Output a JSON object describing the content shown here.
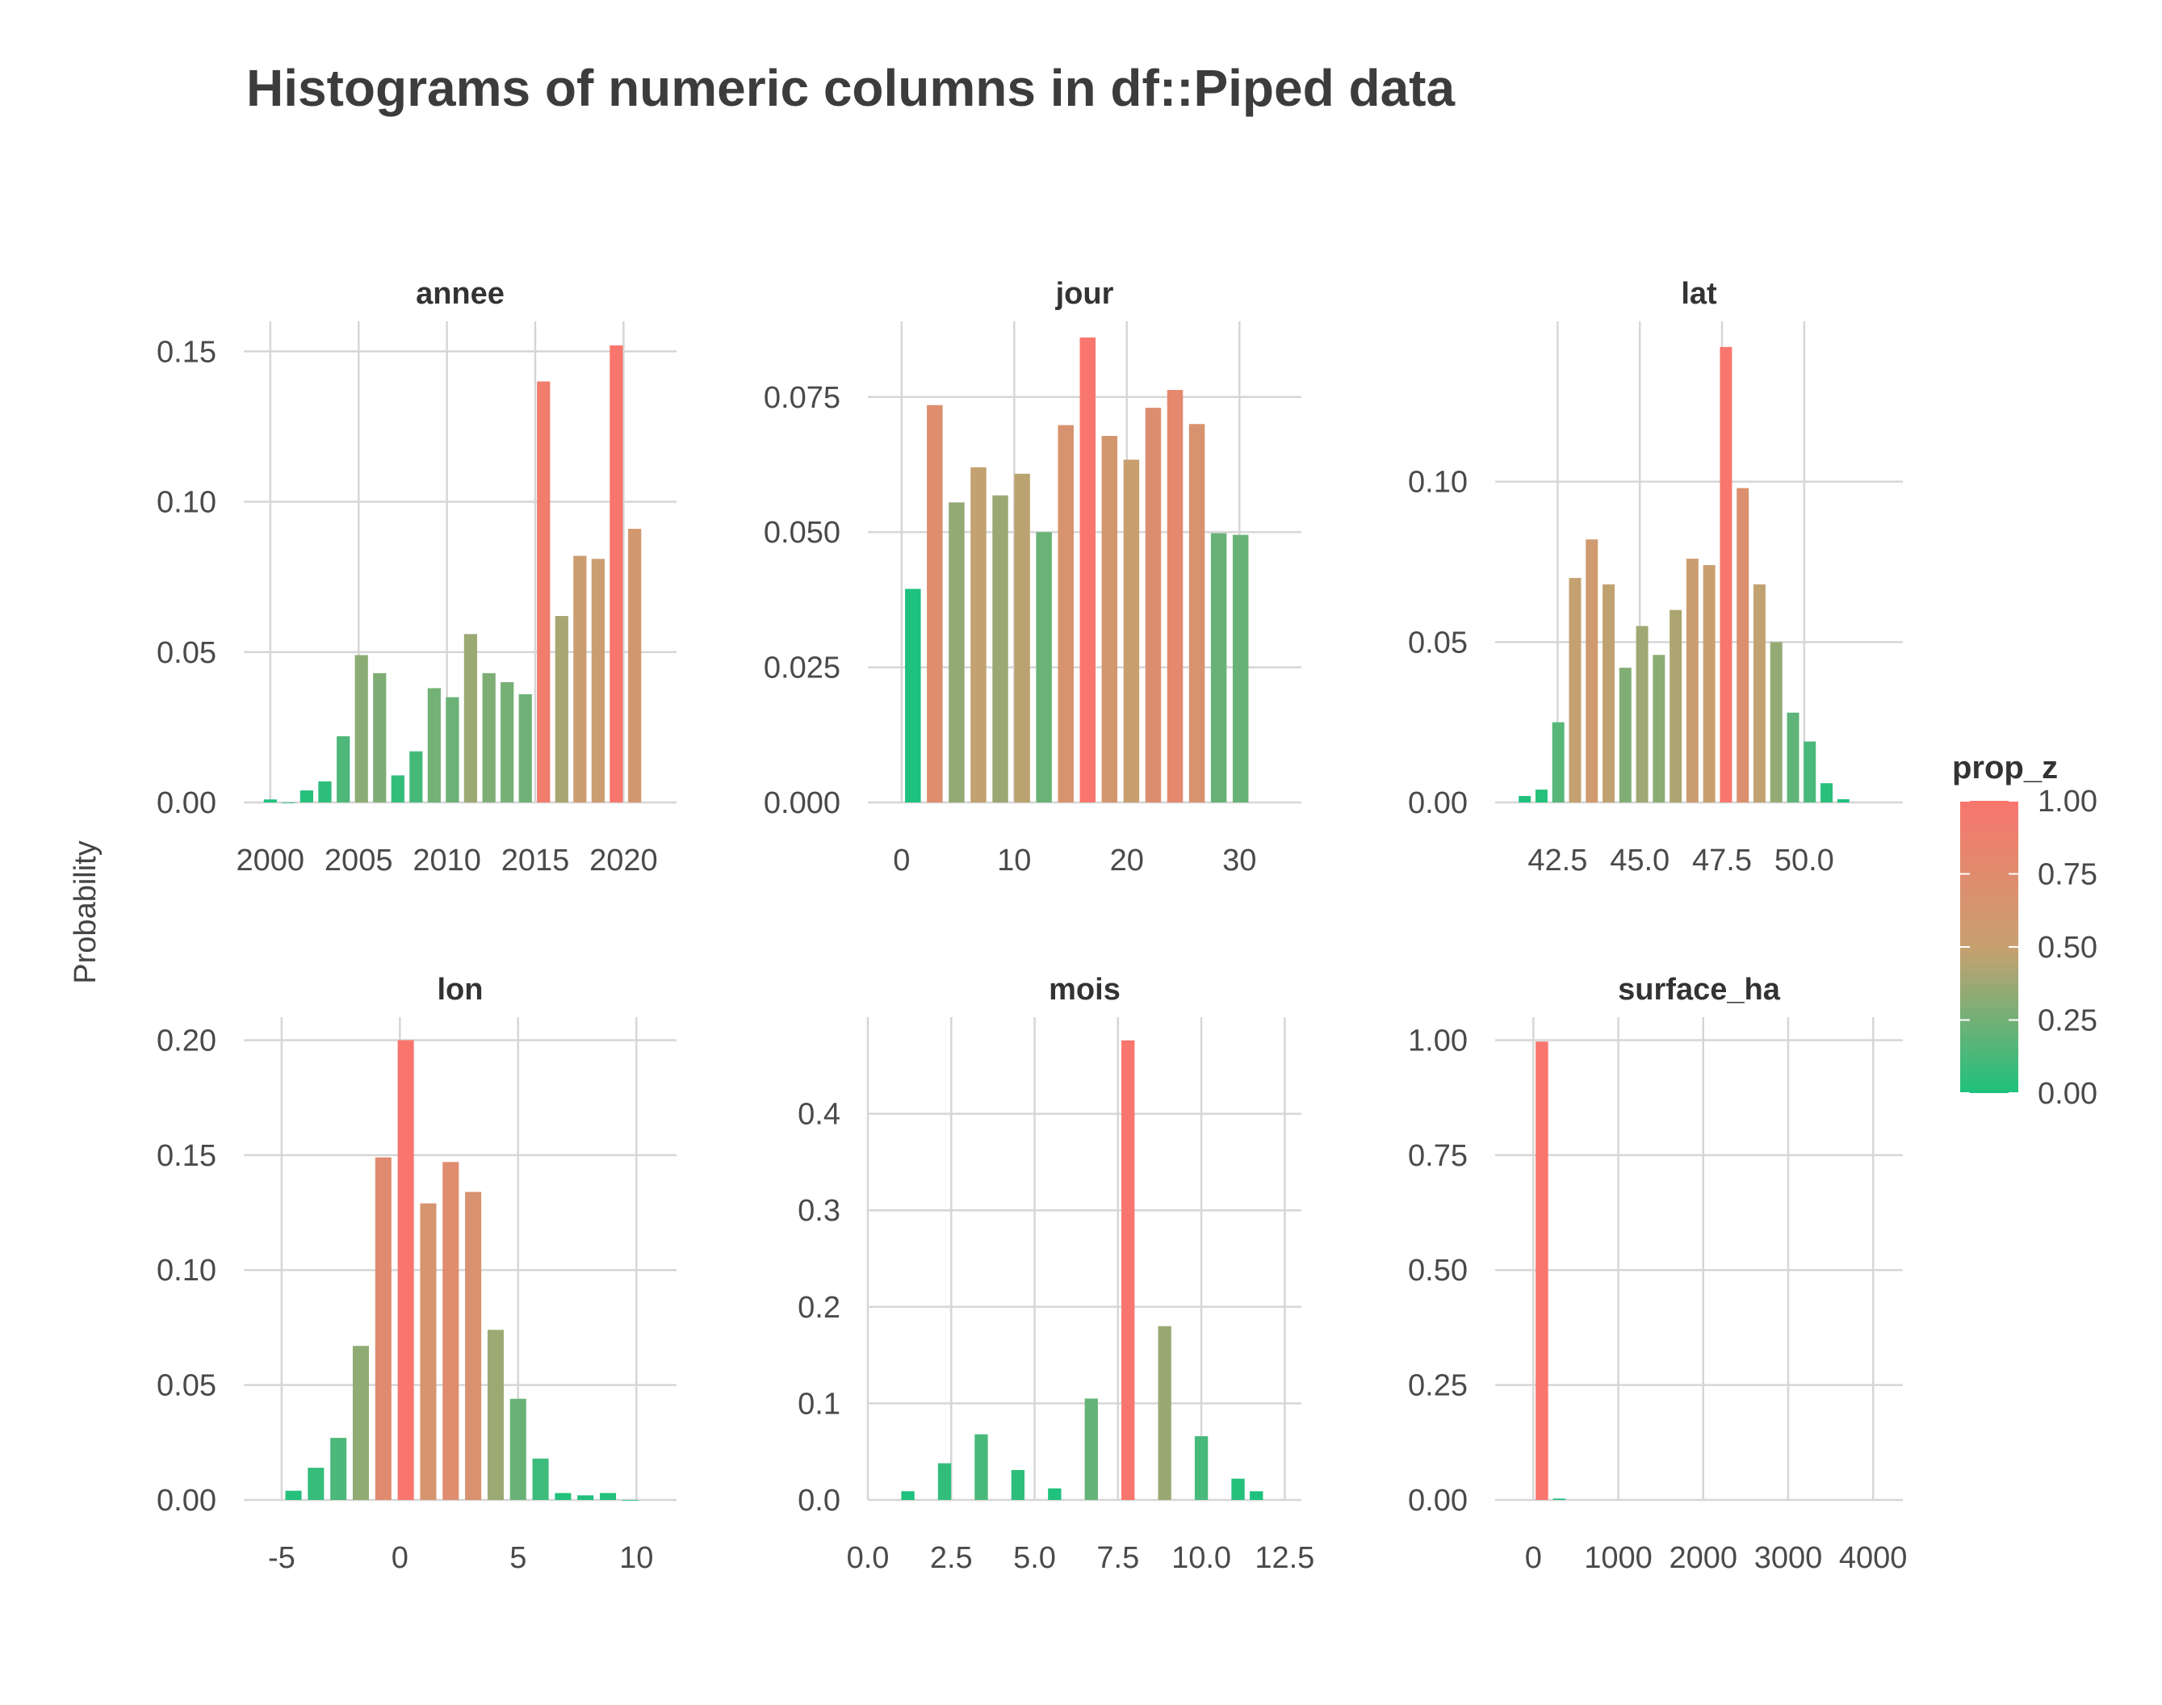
{
  "chart_data": {
    "type": "bar",
    "title": "Histograms of numeric columns in df::Piped data",
    "ylabel": "Probability",
    "xlabel": "",
    "legend": {
      "title": "prop_z",
      "position": "right",
      "ticks": [
        "1.00",
        "0.75",
        "0.50",
        "0.25",
        "0.00"
      ],
      "colors": {
        "low": "#1ec17d",
        "mid": "#c8a070",
        "high": "#f8766d"
      }
    },
    "grid": true,
    "panels": [
      {
        "name": "annee",
        "xlim": [
          1998.5,
          2023
        ],
        "ylim": [
          0,
          0.16
        ],
        "xticks": [
          2000,
          2005,
          2010,
          2015,
          2020
        ],
        "xtick_labels": [
          "2000",
          "2005",
          "2010",
          "2015",
          "2020"
        ],
        "yticks": [
          0,
          0.05,
          0.1,
          0.15
        ],
        "ytick_labels": [
          "0.00",
          "0.05",
          "0.10",
          "0.15"
        ],
        "binwidth": 1.03,
        "x": [
          2000,
          2001.03,
          2002.06,
          2003.09,
          2004.13,
          2005.16,
          2006.19,
          2007.22,
          2008.25,
          2009.28,
          2010.31,
          2011.34,
          2012.38,
          2013.41,
          2014.44,
          2015.47,
          2016.5,
          2017.53,
          2018.56,
          2019.59,
          2020.63
        ],
        "values": [
          0.001,
          0.0,
          0.004,
          0.007,
          0.022,
          0.049,
          0.043,
          0.009,
          0.017,
          0.038,
          0.035,
          0.056,
          0.043,
          0.04,
          0.036,
          0.14,
          0.062,
          0.082,
          0.081,
          0.152,
          0.091
        ]
      },
      {
        "name": "jour",
        "xlim": [
          -3,
          35.5
        ],
        "ylim": [
          0,
          0.089
        ],
        "xticks": [
          0,
          10,
          20,
          30
        ],
        "xtick_labels": [
          "0",
          "10",
          "20",
          "30"
        ],
        "yticks": [
          0,
          0.025,
          0.05,
          0.075
        ],
        "ytick_labels": [
          "0.000",
          "0.025",
          "0.050",
          "0.075"
        ],
        "binwidth": 1.94,
        "x": [
          1,
          2.94,
          4.88,
          6.82,
          8.76,
          10.7,
          12.64,
          14.58,
          16.52,
          18.46,
          20.4,
          22.34,
          24.28,
          26.22,
          28.16,
          30.1
        ],
        "values": [
          0.0395,
          0.0735,
          0.0555,
          0.062,
          0.0568,
          0.0608,
          0.05,
          0.0698,
          0.086,
          0.0678,
          0.0634,
          0.073,
          0.0763,
          0.07,
          0.0498,
          0.0495
        ]
      },
      {
        "name": "lat",
        "xlim": [
          40.6,
          53.0
        ],
        "ylim": [
          0,
          0.15
        ],
        "xticks": [
          42.5,
          45,
          47.5,
          50
        ],
        "xtick_labels": [
          "42.5",
          "45.0",
          "47.5",
          "50.0"
        ],
        "yticks": [
          0,
          0.05,
          0.1
        ],
        "ytick_labels": [
          "0.00",
          "0.05",
          "0.10"
        ],
        "binwidth": 0.51,
        "x": [
          41.5,
          42.01,
          42.52,
          43.03,
          43.54,
          44.05,
          44.56,
          45.07,
          45.58,
          46.09,
          46.6,
          47.11,
          47.62,
          48.13,
          48.64,
          49.15,
          49.66,
          50.17,
          50.68,
          51.19
        ],
        "values": [
          0.002,
          0.004,
          0.025,
          0.07,
          0.082,
          0.068,
          0.042,
          0.055,
          0.046,
          0.06,
          0.076,
          0.074,
          0.142,
          0.098,
          0.068,
          0.05,
          0.028,
          0.019,
          0.006,
          0.001
        ]
      },
      {
        "name": "lon",
        "xlim": [
          -6.6,
          11.7
        ],
        "ylim": [
          0,
          0.21
        ],
        "xticks": [
          -5,
          0,
          5,
          10
        ],
        "xtick_labels": [
          "-5",
          "0",
          "5",
          "10"
        ],
        "yticks": [
          0,
          0.05,
          0.1,
          0.15,
          0.2
        ],
        "ytick_labels": [
          "0.00",
          "0.05",
          "0.10",
          "0.15",
          "0.20"
        ],
        "binwidth": 0.95,
        "x": [
          -4.5,
          -3.55,
          -2.6,
          -1.65,
          -0.7,
          0.25,
          1.2,
          2.15,
          3.1,
          4.05,
          5.0,
          5.95,
          6.9,
          7.85,
          8.8,
          9.75
        ],
        "values": [
          0.004,
          0.014,
          0.027,
          0.067,
          0.149,
          0.2,
          0.129,
          0.147,
          0.134,
          0.074,
          0.044,
          0.018,
          0.003,
          0.002,
          0.003,
          0.0
        ]
      },
      {
        "name": "mois",
        "xlim": [
          0,
          13.0
        ],
        "ylim": [
          0,
          0.5
        ],
        "xticks": [
          0,
          2.5,
          5,
          7.5,
          10,
          12.5
        ],
        "xtick_labels": [
          "0.0",
          "2.5",
          "5.0",
          "7.5",
          "10.0",
          "12.5"
        ],
        "yticks": [
          0,
          0.1,
          0.2,
          0.3,
          0.4
        ],
        "ytick_labels": [
          "0.0",
          "0.1",
          "0.2",
          "0.3",
          "0.4"
        ],
        "binwidth": 0.55,
        "x": [
          1.2,
          2.3,
          3.4,
          4.5,
          5.6,
          6.7,
          7.8,
          8.9,
          10.0,
          11.1,
          11.65
        ],
        "values": [
          0.009,
          0.038,
          0.068,
          0.031,
          0.012,
          0.105,
          0.476,
          0.18,
          0.066,
          0.022,
          0.009
        ]
      },
      {
        "name": "surface_ha",
        "xlim": [
          -450,
          4350
        ],
        "ylim": [
          0,
          1.05
        ],
        "xticks": [
          0,
          1000,
          2000,
          3000,
          4000
        ],
        "xtick_labels": [
          "0",
          "1000",
          "2000",
          "3000",
          "4000"
        ],
        "yticks": [
          0,
          0.25,
          0.5,
          0.75,
          1.0
        ],
        "ytick_labels": [
          "0.00",
          "0.25",
          "0.50",
          "0.75",
          "1.00"
        ],
        "binwidth": 205,
        "x": [
          100,
          305
        ],
        "values": [
          0.997,
          0.003
        ]
      }
    ]
  }
}
